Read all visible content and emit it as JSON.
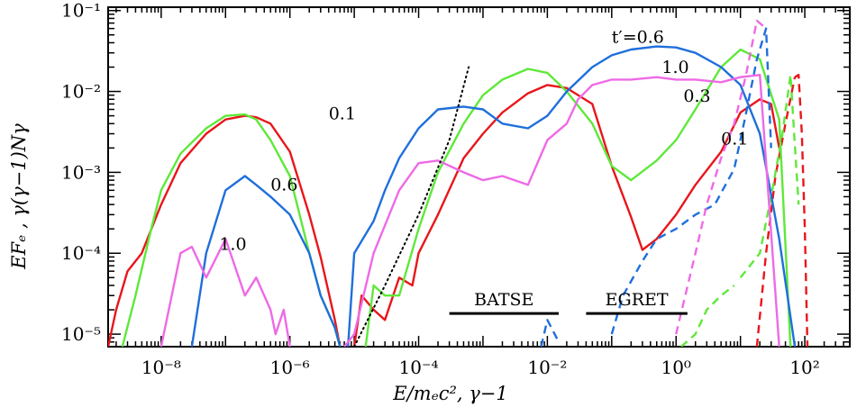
{
  "chart_data": {
    "type": "line",
    "title": "",
    "xlabel": "E/mₑc²,    γ−1",
    "ylabel": "EFₑ ,  γ(γ−1)Nγ",
    "x_scale": "log",
    "y_scale": "log",
    "xlim": [
      1.5e-09,
      500
    ],
    "ylim": [
      7e-06,
      0.11
    ],
    "x_ticks": [
      "10⁻⁸",
      "10⁻⁶",
      "10⁻⁴",
      "10⁻²",
      "10⁰",
      "10²"
    ],
    "y_ticks": [
      "10⁻⁵",
      "10⁻⁴",
      "10⁻³",
      "10⁻²",
      "10⁻¹"
    ],
    "grid": false,
    "legend": "none",
    "colors": {
      "red": "#e8161b",
      "green": "#5fe83a",
      "blue": "#1f6fdc",
      "magenta": "#ee6ae6",
      "black": "#000000"
    },
    "annotations": [
      {
        "text": "0.1",
        "x": 4e-06,
        "y": 0.0045
      },
      {
        "text": "0.6",
        "x": 5e-07,
        "y": 0.0006
      },
      {
        "text": "1.0",
        "x": 8e-08,
        "y": 0.00011
      },
      {
        "text": "t′=0.6",
        "x": 0.1,
        "y": 0.04
      },
      {
        "text": "1.0",
        "x": 0.6,
        "y": 0.017
      },
      {
        "text": "0.3",
        "x": 1.3,
        "y": 0.0075
      },
      {
        "text": "0.1",
        "x": 5,
        "y": 0.0022
      }
    ],
    "bands": [
      {
        "label": "BATSE",
        "x_range": [
          0.0003,
          0.015
        ],
        "y": 1.8e-05
      },
      {
        "label": "EGRET",
        "x_range": [
          0.04,
          1.5
        ],
        "y": 1.8e-05
      }
    ],
    "series": [
      {
        "color": "red",
        "style": "solid",
        "x": [
          1.5e-09,
          2e-09,
          3e-09,
          5e-09,
          1e-08,
          2e-08,
          5e-08,
          1e-07,
          2e-07,
          3e-07,
          5e-07,
          1e-06,
          2e-06,
          3e-06,
          5e-06,
          6e-06
        ],
        "y": [
          7e-06,
          2e-05,
          6e-05,
          0.0001,
          0.0004,
          0.0013,
          0.003,
          0.0045,
          0.005,
          0.0048,
          0.004,
          0.0018,
          0.0003,
          9e-05,
          1.5e-05,
          7e-06
        ]
      },
      {
        "color": "red",
        "style": "solid",
        "x": [
          1e-05,
          1.3e-05,
          2e-05,
          3e-05,
          5e-05,
          8e-05,
          0.0001,
          0.0002,
          0.0005,
          0.001,
          0.002,
          0.005,
          0.01,
          0.02,
          0.05,
          0.1,
          0.2,
          0.3,
          0.5,
          1,
          2,
          5,
          10,
          20,
          30,
          40
        ],
        "y": [
          7e-06,
          3e-05,
          2e-05,
          1.5e-05,
          5e-05,
          4e-05,
          0.0001,
          0.0003,
          0.0015,
          0.003,
          0.0055,
          0.0095,
          0.012,
          0.011,
          0.007,
          0.0012,
          0.00028,
          0.00011,
          0.00015,
          0.0003,
          0.0007,
          0.0018,
          0.0055,
          0.008,
          0.007,
          0.002
        ]
      },
      {
        "color": "red",
        "style": "dashed",
        "x": [
          18,
          25,
          35,
          50,
          70
        ],
        "y": [
          7e-06,
          0.0001,
          0.0009,
          0.004,
          0.015
        ]
      },
      {
        "color": "red",
        "style": "dashed",
        "x": [
          70,
          80,
          90,
          100,
          110
        ],
        "y": [
          0.015,
          0.016,
          0.003,
          0.0002,
          7e-06
        ]
      },
      {
        "color": "green",
        "style": "solid",
        "x": [
          2.5e-09,
          4e-09,
          7e-09,
          1e-08,
          2e-08,
          5e-08,
          1e-07,
          2e-07,
          3e-07,
          5e-07,
          1e-06,
          2e-06,
          3e-06,
          5e-06,
          6e-06
        ],
        "y": [
          7e-06,
          3e-05,
          0.0002,
          0.0006,
          0.0017,
          0.0035,
          0.005,
          0.0052,
          0.0045,
          0.0025,
          0.0009,
          0.0001,
          3e-05,
          1.2e-05,
          7e-06
        ]
      },
      {
        "color": "green",
        "style": "solid",
        "x": [
          1.5e-05,
          2e-05,
          3e-05,
          5e-05,
          0.0001,
          0.0002,
          0.0005,
          0.001,
          0.002,
          0.005,
          0.01,
          0.02,
          0.05,
          0.1,
          0.2,
          0.5,
          1,
          2,
          5,
          10,
          20,
          40,
          60
        ],
        "y": [
          7e-06,
          4e-05,
          3e-05,
          3e-05,
          0.0002,
          0.001,
          0.004,
          0.009,
          0.014,
          0.019,
          0.017,
          0.01,
          0.004,
          0.0012,
          0.0008,
          0.0014,
          0.0025,
          0.006,
          0.02,
          0.033,
          0.025,
          0.0045,
          7e-06
        ]
      },
      {
        "color": "green",
        "style": "dashed",
        "x": [
          1.2,
          2,
          3,
          5,
          8
        ],
        "y": [
          7e-06,
          1e-05,
          2e-05,
          3e-05,
          4e-05
        ]
      },
      {
        "color": "green",
        "style": "dashed",
        "x": [
          10,
          20,
          30,
          45,
          60,
          80
        ],
        "y": [
          5e-05,
          0.0001,
          0.0005,
          0.003,
          0.016,
          0.0004
        ]
      },
      {
        "color": "blue",
        "style": "solid",
        "x": [
          3e-08,
          5e-08,
          1e-07,
          2e-07,
          3e-07,
          5e-07,
          1e-06,
          2e-06,
          3e-06,
          5e-06,
          6e-06
        ],
        "y": [
          7e-06,
          0.0001,
          0.0006,
          0.0009,
          0.0007,
          0.0005,
          0.0003,
          0.0001,
          3e-05,
          1.2e-05,
          7e-06
        ]
      },
      {
        "color": "blue",
        "style": "solid",
        "x": [
          8e-06,
          1e-05,
          2e-05,
          3e-05,
          5e-05,
          0.0001,
          0.0002,
          0.0005,
          0.001,
          0.002,
          0.005,
          0.01,
          0.02,
          0.05,
          0.1,
          0.2,
          0.5,
          1,
          2,
          5,
          10,
          20,
          40,
          70
        ],
        "y": [
          7e-06,
          0.0001,
          0.00025,
          0.0006,
          0.0015,
          0.0035,
          0.006,
          0.0065,
          0.006,
          0.004,
          0.0035,
          0.005,
          0.01,
          0.02,
          0.028,
          0.033,
          0.036,
          0.035,
          0.03,
          0.02,
          0.012,
          0.003,
          0.00015,
          7e-06
        ]
      },
      {
        "color": "blue",
        "style": "dashed",
        "x": [
          0.008,
          0.01,
          0.015
        ],
        "y": [
          7e-06,
          1.5e-05,
          8e-06
        ]
      },
      {
        "color": "blue",
        "style": "dashed",
        "x": [
          0.1,
          0.15,
          0.3,
          0.5,
          1,
          2,
          4,
          8,
          12,
          18,
          25,
          30
        ],
        "y": [
          1e-05,
          3e-05,
          8e-05,
          0.00015,
          0.0002,
          0.0003,
          0.0004,
          0.0011,
          0.005,
          0.025,
          0.06,
          0.002
        ]
      },
      {
        "color": "magenta",
        "style": "solid",
        "x": [
          1e-08,
          2e-08,
          3e-08,
          5e-08,
          1e-07,
          2e-07,
          3e-07,
          5e-07,
          6e-07,
          8e-07,
          1e-06
        ],
        "y": [
          7e-06,
          0.0001,
          0.00012,
          5e-05,
          0.00015,
          3e-05,
          5e-05,
          2e-05,
          1e-05,
          2e-05,
          7e-06
        ]
      },
      {
        "color": "magenta",
        "style": "solid",
        "x": [
          7e-06,
          1e-05,
          2e-05,
          5e-05,
          0.0001,
          0.0002,
          0.0005,
          0.001,
          0.002,
          0.005,
          0.01,
          0.02,
          0.03,
          0.05,
          0.1,
          0.2,
          0.5,
          1,
          2,
          5,
          10,
          20,
          40
        ],
        "y": [
          7e-06,
          1e-05,
          0.0001,
          0.0006,
          0.0013,
          0.0014,
          0.001,
          0.0008,
          0.0009,
          0.0007,
          0.0025,
          0.004,
          0.008,
          0.012,
          0.014,
          0.014,
          0.015,
          0.014,
          0.014,
          0.013,
          0.015,
          0.016,
          7e-06
        ]
      },
      {
        "color": "magenta",
        "style": "dashed",
        "x": [
          1,
          2,
          3,
          5,
          8,
          12,
          18,
          25
        ],
        "y": [
          1e-05,
          0.0001,
          0.0004,
          0.0015,
          0.004,
          0.015,
          0.075,
          0.06
        ]
      },
      {
        "color": "black",
        "style": "dotted",
        "x": [
          1e-05,
          3e-05,
          0.0001,
          0.0003,
          0.0006
        ],
        "y": [
          7e-06,
          4e-05,
          0.0003,
          0.0025,
          0.02
        ]
      }
    ]
  }
}
